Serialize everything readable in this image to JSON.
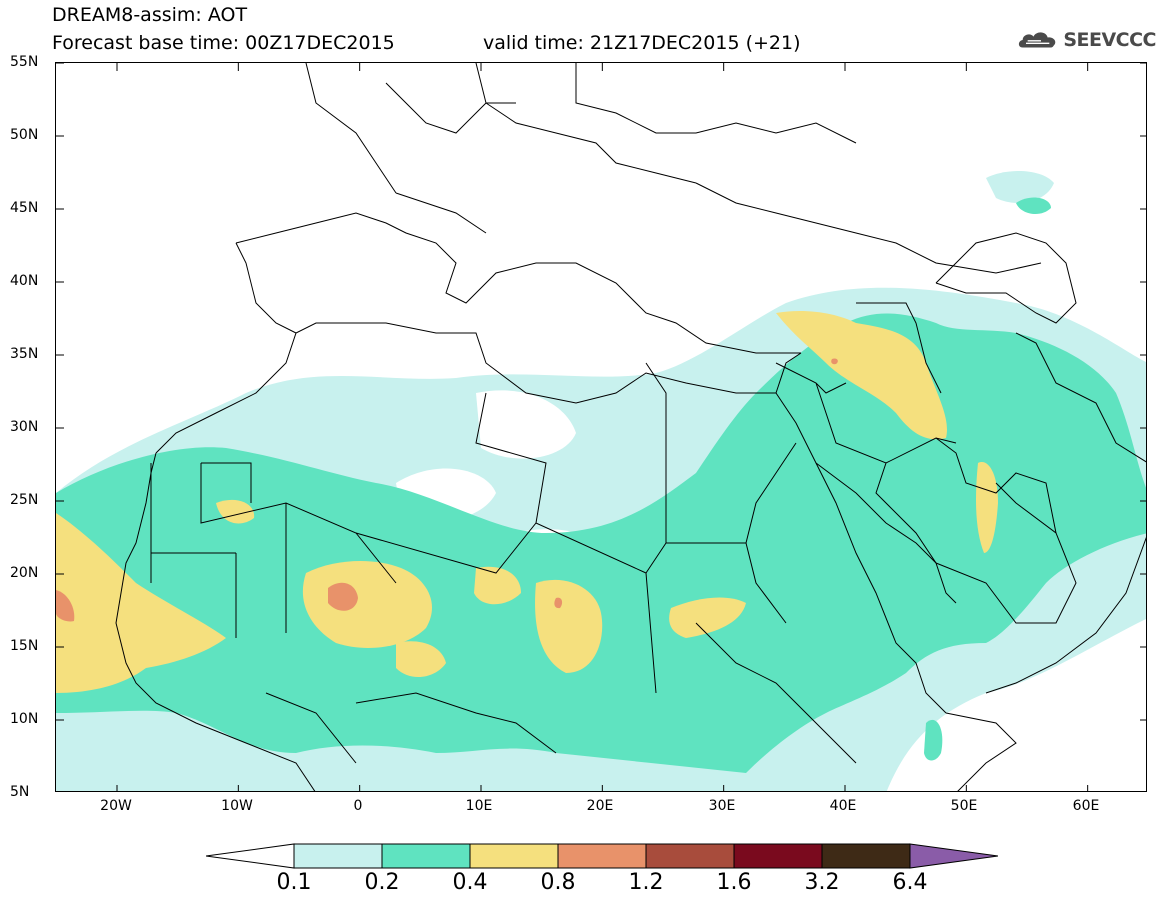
{
  "header": {
    "title": "DREAM8-assim: AOT",
    "base_time": "Forecast base time: 00Z17DEC2015",
    "valid_time": "valid time: 21Z17DEC2015 (+21)",
    "logo_text": "SEEVCCC",
    "logo_icon": "cloud-logo-icon"
  },
  "map": {
    "extent": {
      "lon": [
        -25,
        65
      ],
      "lat": [
        5,
        55
      ]
    },
    "lat_ticks": [
      "55N",
      "50N",
      "45N",
      "40N",
      "35N",
      "30N",
      "25N",
      "20N",
      "15N",
      "10N",
      "5N"
    ],
    "lon_ticks": [
      "20W",
      "10W",
      "0",
      "10E",
      "20E",
      "30E",
      "40E",
      "50E",
      "60E"
    ]
  },
  "colorbar": {
    "labels": [
      "0.1",
      "0.2",
      "0.4",
      "0.8",
      "1.2",
      "1.6",
      "3.2",
      "6.4"
    ],
    "colors": [
      "#c8f1ee",
      "#5fe3c0",
      "#f5e07e",
      "#e8926a",
      "#a84c3c",
      "#7a0a1e",
      "#3e2a16",
      "#8a5ca8"
    ],
    "under_color": "#ffffff"
  }
}
